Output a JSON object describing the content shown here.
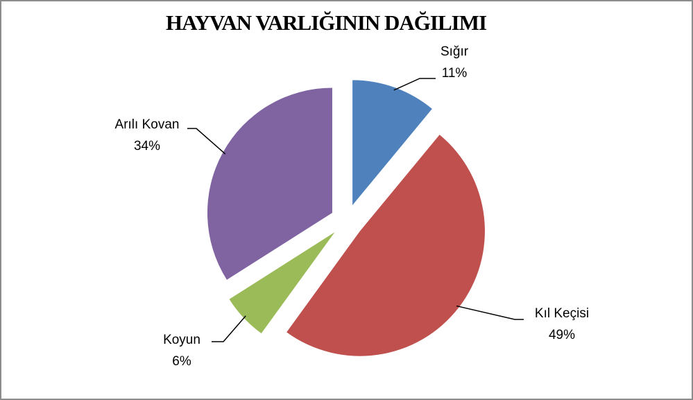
{
  "chart_data": {
    "type": "pie",
    "title": "HAYVAN VARLIĞININ DAĞILIMI",
    "categories": [
      "Sığır",
      "Kıl Keçisi",
      "Koyun",
      "Arılı Kovan"
    ],
    "values": [
      11,
      49,
      6,
      34
    ],
    "value_labels": [
      "11%",
      "49%",
      "6%",
      "34%"
    ],
    "colors": [
      "#4f81bd",
      "#c0504d",
      "#9bbb59",
      "#8064a2"
    ],
    "exploded": true
  }
}
